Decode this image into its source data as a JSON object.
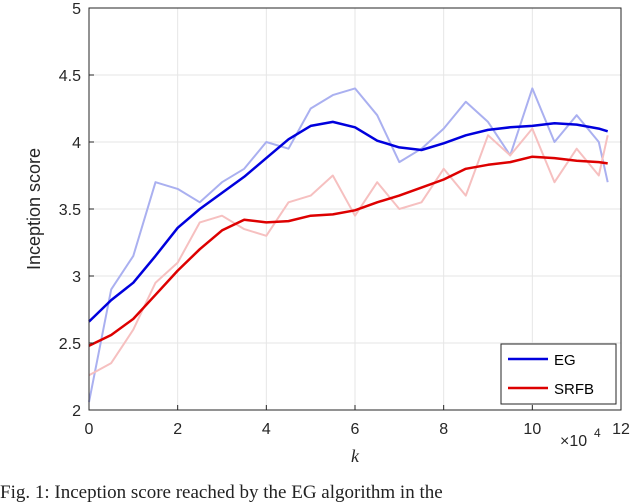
{
  "chart_data": {
    "type": "line",
    "title": "",
    "xlabel": "k",
    "ylabel": "Inception score",
    "x_multiplier": "×10^4",
    "x_multiplier_base": "×10",
    "x_multiplier_exp": "4",
    "xlim": [
      0,
      12
    ],
    "ylim": [
      2,
      5
    ],
    "x_ticks": [
      "0",
      "2",
      "4",
      "6",
      "8",
      "10",
      "12"
    ],
    "y_ticks": [
      "2",
      "2.5",
      "3",
      "3.5",
      "4",
      "4.5",
      "5"
    ],
    "grid": true,
    "legend_position": "bottom-right",
    "series": [
      {
        "name": "EG",
        "color": "#0000dd",
        "raw_color": "#aab0f0",
        "x": [
          0,
          0.5,
          1,
          1.5,
          2,
          2.5,
          3,
          3.5,
          4,
          4.5,
          5,
          5.5,
          6,
          6.5,
          7,
          7.5,
          8,
          8.5,
          9,
          9.5,
          10,
          10.5,
          11,
          11.5,
          11.7
        ],
        "values": [
          2.66,
          2.82,
          2.95,
          3.15,
          3.36,
          3.5,
          3.62,
          3.74,
          3.88,
          4.02,
          4.12,
          4.15,
          4.11,
          4.01,
          3.96,
          3.94,
          3.99,
          4.05,
          4.09,
          4.11,
          4.12,
          4.14,
          4.13,
          4.1,
          4.08
        ],
        "raw_values": [
          2.06,
          2.9,
          3.15,
          3.7,
          3.65,
          3.55,
          3.7,
          3.8,
          4.0,
          3.95,
          4.25,
          4.35,
          4.4,
          4.2,
          3.85,
          3.95,
          4.1,
          4.3,
          4.15,
          3.9,
          4.4,
          4.0,
          4.2,
          4.0,
          3.7
        ]
      },
      {
        "name": "SRFB",
        "color": "#dd0000",
        "raw_color": "#f6c0c0",
        "x": [
          0,
          0.5,
          1,
          1.5,
          2,
          2.5,
          3,
          3.5,
          4,
          4.5,
          5,
          5.5,
          6,
          6.5,
          7,
          7.5,
          8,
          8.5,
          9,
          9.5,
          10,
          10.5,
          11,
          11.5,
          11.7
        ],
        "values": [
          2.48,
          2.56,
          2.68,
          2.86,
          3.04,
          3.2,
          3.34,
          3.42,
          3.4,
          3.41,
          3.45,
          3.46,
          3.49,
          3.55,
          3.6,
          3.66,
          3.72,
          3.8,
          3.83,
          3.85,
          3.89,
          3.88,
          3.86,
          3.85,
          3.84
        ],
        "raw_values": [
          2.26,
          2.35,
          2.6,
          2.95,
          3.1,
          3.4,
          3.45,
          3.35,
          3.3,
          3.55,
          3.6,
          3.75,
          3.45,
          3.7,
          3.5,
          3.55,
          3.8,
          3.6,
          4.05,
          3.9,
          4.1,
          3.7,
          3.95,
          3.75,
          4.05
        ]
      }
    ]
  },
  "caption": "Fig. 1: Inception score reached by the EG algorithm in the"
}
